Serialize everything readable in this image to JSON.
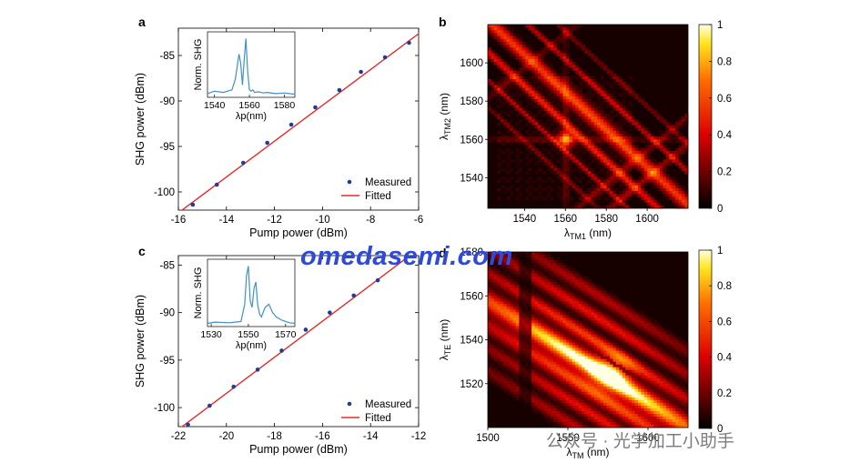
{
  "chart_data": [
    {
      "panel": "a",
      "type": "scatter",
      "xlabel": "Pump power (dBm)",
      "ylabel": "SHG power (dBm)",
      "xlim": [
        -16,
        -6
      ],
      "ylim": [
        -102,
        -82
      ],
      "xticks": [
        -16,
        -14,
        -12,
        -10,
        -8,
        -6
      ],
      "yticks": [
        -100,
        -95,
        -90,
        -85
      ],
      "series": [
        {
          "name": "Measured",
          "x": [
            -15.4,
            -14.4,
            -13.3,
            -12.3,
            -11.3,
            -10.3,
            -9.3,
            -8.4,
            -7.4,
            -6.4
          ],
          "y": [
            -101.4,
            -99.2,
            -96.8,
            -94.6,
            -92.6,
            -90.7,
            -88.8,
            -86.8,
            -85.2,
            -83.6
          ]
        },
        {
          "name": "Fitted",
          "x": [
            -16,
            -6
          ],
          "y": [
            -102.3,
            -82.6
          ]
        }
      ],
      "legend": "bottom-right",
      "inset": {
        "xlabel": "λp(nm)",
        "ylabel": "Norm. SHG",
        "xlim": [
          1536,
          1586
        ],
        "xticks": [
          1540,
          1560,
          1580
        ],
        "x": [
          1536,
          1540,
          1545,
          1550,
          1552,
          1554,
          1555,
          1556,
          1557,
          1558,
          1559,
          1560,
          1561,
          1562,
          1563,
          1565,
          1568,
          1570,
          1575,
          1580,
          1586
        ],
        "y": [
          0.06,
          0.1,
          0.08,
          0.12,
          0.3,
          0.7,
          0.55,
          0.2,
          0.6,
          0.95,
          0.4,
          0.12,
          0.1,
          0.12,
          0.08,
          0.09,
          0.07,
          0.08,
          0.06,
          0.07,
          0.05
        ]
      }
    },
    {
      "panel": "b",
      "type": "heatmap",
      "xlabel": "λTM1 (nm)",
      "ylabel": "λTM2 (nm)",
      "xlim": [
        1522,
        1620
      ],
      "ylim": [
        1524,
        1620
      ],
      "xticks": [
        1540,
        1560,
        1580,
        1600
      ],
      "yticks": [
        1540,
        1560,
        1580,
        1600
      ],
      "colorbar_ticks": [
        0,
        0.2,
        0.4,
        0.6,
        0.8,
        1
      ]
    },
    {
      "panel": "c",
      "type": "scatter",
      "xlabel": "Pump power (dBm)",
      "ylabel": "SHG power (dBm)",
      "xlim": [
        -22,
        -12
      ],
      "ylim": [
        -102,
        -84
      ],
      "xticks": [
        -22,
        -20,
        -18,
        -16,
        -14,
        -12
      ],
      "yticks": [
        -100,
        -95,
        -90,
        -85
      ],
      "series": [
        {
          "name": "Measured",
          "x": [
            -21.6,
            -20.7,
            -19.7,
            -18.7,
            -17.7,
            -16.7,
            -15.7,
            -14.7,
            -13.7
          ],
          "y": [
            -101.8,
            -99.8,
            -97.8,
            -96.0,
            -94.0,
            -91.8,
            -90.0,
            -88.2,
            -86.6
          ]
        },
        {
          "name": "Fitted",
          "x": [
            -22,
            -12
          ],
          "y": [
            -102.3,
            -83.3
          ]
        }
      ],
      "legend": "bottom-right",
      "inset": {
        "xlabel": "λp(nm)",
        "ylabel": "Norm. SHG",
        "xlim": [
          1528,
          1575
        ],
        "xticks": [
          1530,
          1550,
          1570
        ],
        "x": [
          1528,
          1532,
          1540,
          1546,
          1548,
          1549,
          1550,
          1551,
          1552,
          1553,
          1554,
          1555,
          1556,
          1557,
          1559,
          1561,
          1563,
          1565,
          1568,
          1572,
          1575
        ],
        "y": [
          0.05,
          0.07,
          0.06,
          0.08,
          0.35,
          0.8,
          0.95,
          0.4,
          0.3,
          0.6,
          0.7,
          0.35,
          0.2,
          0.15,
          0.3,
          0.35,
          0.22,
          0.15,
          0.1,
          0.06,
          0.05
        ]
      }
    },
    {
      "panel": "d",
      "type": "heatmap",
      "xlabel": "λTM (nm)",
      "ylabel": "λTE (nm)",
      "xlim": [
        1500,
        1625
      ],
      "ylim": [
        1500,
        1580
      ],
      "xticks": [
        1500,
        1550,
        1600
      ],
      "yticks": [
        1520,
        1540,
        1560,
        1580
      ],
      "colorbar_ticks": [
        0,
        0.2,
        0.4,
        0.6,
        0.8,
        1
      ]
    }
  ],
  "labels": {
    "panel_a": "a",
    "panel_b": "b",
    "panel_c": "c",
    "panel_d": "d",
    "legend_measured": "Measured",
    "legend_fitted": "Fitted",
    "watermark": "omedasemi.com",
    "wechat_caption": "公众号 · 光学加工小助手"
  },
  "colors": {
    "measured": "#1f3c99",
    "fitted": "#e52b2b",
    "inset_line": "#3f8fd1"
  }
}
